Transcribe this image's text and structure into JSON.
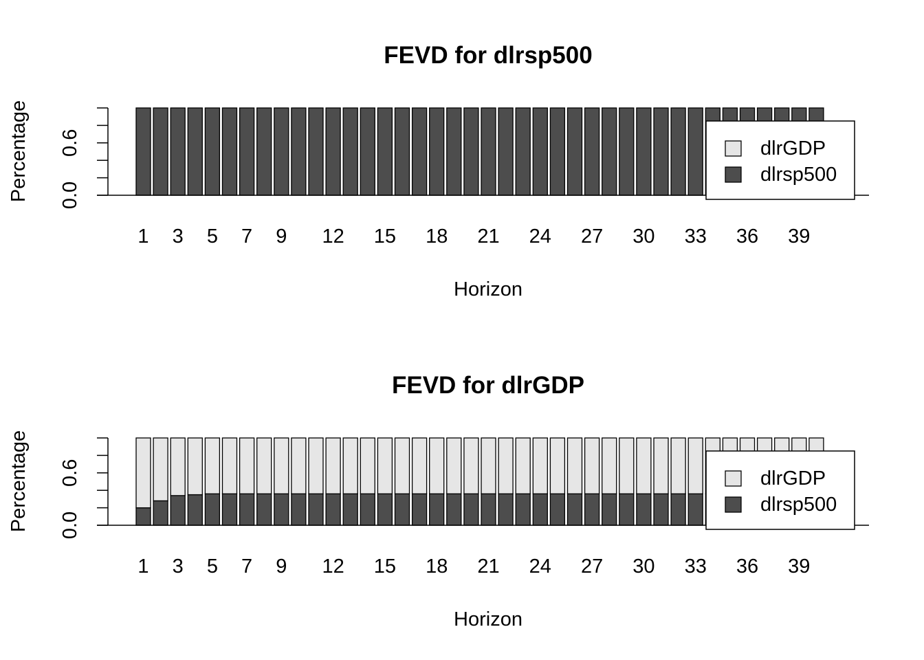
{
  "chart_data": [
    {
      "type": "bar",
      "stacked": true,
      "title": "FEVD for dlrsp500",
      "xlabel": "Horizon",
      "ylabel": "Percentage",
      "ylim": [
        0,
        1
      ],
      "y_ticks": [
        "0.0",
        "0.6"
      ],
      "x_tick_labels": [
        "1",
        "3",
        "5",
        "7",
        "9",
        "12",
        "15",
        "18",
        "21",
        "24",
        "27",
        "30",
        "33",
        "36",
        "39"
      ],
      "categories": [
        1,
        2,
        3,
        4,
        5,
        6,
        7,
        8,
        9,
        10,
        11,
        12,
        13,
        14,
        15,
        16,
        17,
        18,
        19,
        20,
        21,
        22,
        23,
        24,
        25,
        26,
        27,
        28,
        29,
        30,
        31,
        32,
        33,
        34,
        35,
        36,
        37,
        38,
        39,
        40
      ],
      "legend_position": "right",
      "series": [
        {
          "name": "dlrsp500",
          "color": "#4d4d4d",
          "values": [
            1,
            1,
            1,
            1,
            1,
            1,
            1,
            1,
            1,
            1,
            1,
            1,
            1,
            1,
            1,
            1,
            1,
            1,
            1,
            1,
            1,
            1,
            1,
            1,
            1,
            1,
            1,
            1,
            1,
            1,
            1,
            1,
            1,
            1,
            1,
            1,
            1,
            1,
            1,
            1
          ]
        },
        {
          "name": "dlrGDP",
          "color": "#e6e6e6",
          "values": [
            0,
            0,
            0,
            0,
            0,
            0,
            0,
            0,
            0,
            0,
            0,
            0,
            0,
            0,
            0,
            0,
            0,
            0,
            0,
            0,
            0,
            0,
            0,
            0,
            0,
            0,
            0,
            0,
            0,
            0,
            0,
            0,
            0,
            0,
            0,
            0,
            0,
            0,
            0,
            0
          ]
        }
      ],
      "legend": [
        "dlrGDP",
        "dlrsp500"
      ]
    },
    {
      "type": "bar",
      "stacked": true,
      "title": "FEVD for dlrGDP",
      "xlabel": "Horizon",
      "ylabel": "Percentage",
      "ylim": [
        0,
        1
      ],
      "y_ticks": [
        "0.0",
        "0.6"
      ],
      "x_tick_labels": [
        "1",
        "3",
        "5",
        "7",
        "9",
        "12",
        "15",
        "18",
        "21",
        "24",
        "27",
        "30",
        "33",
        "36",
        "39"
      ],
      "categories": [
        1,
        2,
        3,
        4,
        5,
        6,
        7,
        8,
        9,
        10,
        11,
        12,
        13,
        14,
        15,
        16,
        17,
        18,
        19,
        20,
        21,
        22,
        23,
        24,
        25,
        26,
        27,
        28,
        29,
        30,
        31,
        32,
        33,
        34,
        35,
        36,
        37,
        38,
        39,
        40
      ],
      "legend_position": "right",
      "series": [
        {
          "name": "dlrsp500",
          "color": "#4d4d4d",
          "values": [
            0.2,
            0.28,
            0.34,
            0.35,
            0.36,
            0.36,
            0.36,
            0.36,
            0.36,
            0.36,
            0.36,
            0.36,
            0.36,
            0.36,
            0.36,
            0.36,
            0.36,
            0.36,
            0.36,
            0.36,
            0.36,
            0.36,
            0.36,
            0.36,
            0.36,
            0.36,
            0.36,
            0.36,
            0.36,
            0.36,
            0.36,
            0.36,
            0.36,
            0.36,
            0.36,
            0.36,
            0.36,
            0.36,
            0.36,
            0.36
          ]
        },
        {
          "name": "dlrGDP",
          "color": "#e6e6e6",
          "values": [
            0.8,
            0.72,
            0.66,
            0.65,
            0.64,
            0.64,
            0.64,
            0.64,
            0.64,
            0.64,
            0.64,
            0.64,
            0.64,
            0.64,
            0.64,
            0.64,
            0.64,
            0.64,
            0.64,
            0.64,
            0.64,
            0.64,
            0.64,
            0.64,
            0.64,
            0.64,
            0.64,
            0.64,
            0.64,
            0.64,
            0.64,
            0.64,
            0.64,
            0.64,
            0.64,
            0.64,
            0.64,
            0.64,
            0.64,
            0.64
          ]
        }
      ],
      "legend": [
        "dlrGDP",
        "dlrsp500"
      ]
    }
  ]
}
